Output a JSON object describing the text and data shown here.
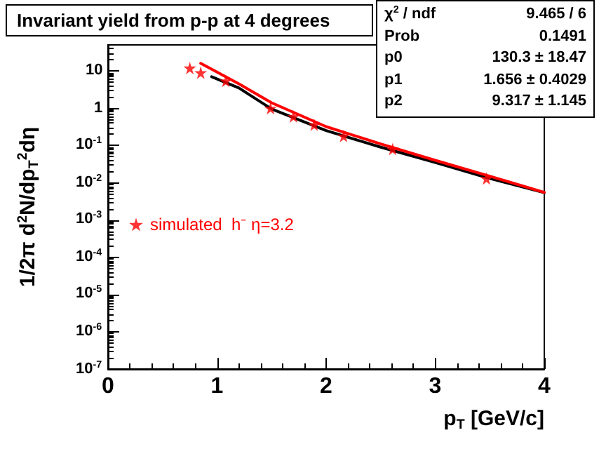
{
  "chart_data": {
    "type": "scatter",
    "title": "Invariant yield from p-p at 4 degrees",
    "xlabel": "p$_{T}$ [GeV/c]",
    "ylabel": "1/2π d$^{2}$N/dp$_{T}$$^{2}$dη",
    "annotations": [
      "χ$^{2}$ / ndf",
      "9.465 / 6",
      "Prob",
      "0.1491",
      "p0",
      "130.3 ± 18.47",
      "p1",
      "1.656 ± 0.4029",
      "p2",
      "9.317 ± 1.145"
    ],
    "log": "y",
    "xlim": [
      0,
      4
    ],
    "xticks": [
      0,
      1,
      2,
      3,
      4
    ],
    "ylim": [
      1e-07,
      50
    ],
    "yticks": [
      {
        "value": 1e-07,
        "label": "10$^{-7}$"
      },
      {
        "value": 1e-06,
        "label": "10$^{-6}$"
      },
      {
        "value": 1e-05,
        "label": "10$^{-5}$"
      },
      {
        "value": 0.0001,
        "label": "10$^{-4}$"
      },
      {
        "value": 0.001,
        "label": "10$^{-3}$"
      },
      {
        "value": 0.01,
        "label": "10$^{-2}$"
      },
      {
        "value": 0.1,
        "label": "10$^{-1}$"
      },
      1,
      10
    ],
    "grid": false,
    "legend": "left",
    "series": [
      {
        "type": "line",
        "color": "#000000",
        "marker": "none",
        "x": [
          0.95,
          1.2,
          1.5,
          2,
          2.5,
          3,
          3.5,
          4
        ],
        "values": [
          7,
          3.5,
          0.95,
          0.25,
          0.09,
          0.035,
          0.013,
          0.0054
        ]
      },
      {
        "type": "line",
        "color": "#ff0000",
        "marker": "none",
        "x": [
          0.85,
          1.2,
          1.5,
          2,
          2.5,
          3,
          3.5,
          4
        ],
        "values": [
          16,
          4.5,
          1.4,
          0.32,
          0.11,
          0.04,
          0.015,
          0.0055
        ]
      },
      {
        "type": "scatter",
        "name": "simulated  h⁻ η=3.2",
        "color": "#ff0000",
        "marker": "star",
        "x": [
          0.75,
          0.85,
          1.08,
          1.49,
          1.7,
          1.89,
          2.16,
          2.61,
          3.47
        ],
        "values": [
          12,
          9,
          5.4,
          1.0,
          0.6,
          0.36,
          0.18,
          0.08,
          0.013
        ]
      }
    ]
  }
}
